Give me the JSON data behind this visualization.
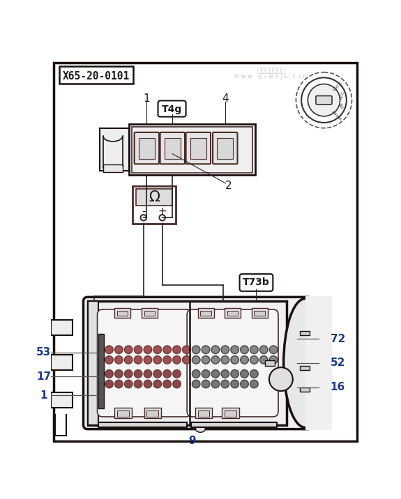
{
  "bg_color": "#ffffff",
  "outer_border_color": "#111111",
  "title_box": "X65-20-0101",
  "connector_label_top": "T4g",
  "connector_label_bottom": "T73b",
  "dark": "#1a1010",
  "med": "#4a2a2a",
  "brown_pin": "#8B5A5A",
  "gray_pin": "#888888",
  "text_color": "#1a1a1a",
  "blue_text": "#1a3a8a",
  "wire_color": "#222222"
}
